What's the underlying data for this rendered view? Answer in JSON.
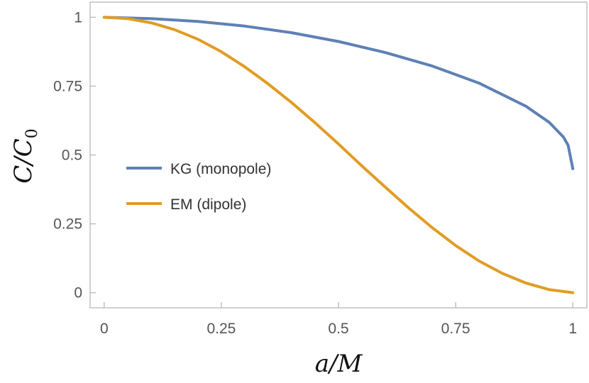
{
  "chart_data": {
    "type": "line",
    "title": "",
    "xlabel": "a/M",
    "ylabel": "C/C",
    "ylabel_subscript": "0",
    "xlim": [
      -0.03,
      1.03
    ],
    "ylim": [
      -0.055,
      1.055
    ],
    "xticks": [
      0,
      0.25,
      0.5,
      0.75,
      1
    ],
    "xtick_labels": [
      "0",
      "0.25",
      "0.5",
      "0.75",
      "1"
    ],
    "yticks": [
      0,
      0.25,
      0.5,
      0.75,
      1
    ],
    "ytick_labels": [
      "0",
      "0.25",
      "0.5",
      "0.75",
      "1"
    ],
    "grid": false,
    "legend_position": "center-left",
    "series": [
      {
        "name": "KG (monopole)",
        "color": "#5E81B5",
        "x": [
          0,
          0.1,
          0.2,
          0.3,
          0.4,
          0.5,
          0.6,
          0.7,
          0.8,
          0.9,
          0.95,
          0.98,
          0.99,
          1.0
        ],
        "y": [
          1.0,
          0.995,
          0.985,
          0.968,
          0.944,
          0.912,
          0.872,
          0.823,
          0.761,
          0.677,
          0.618,
          0.565,
          0.535,
          0.45
        ]
      },
      {
        "name": "EM (dipole)",
        "color": "#E19C24",
        "x": [
          0,
          0.05,
          0.1,
          0.15,
          0.2,
          0.25,
          0.3,
          0.35,
          0.4,
          0.45,
          0.5,
          0.55,
          0.6,
          0.65,
          0.7,
          0.75,
          0.8,
          0.85,
          0.9,
          0.95,
          1.0
        ],
        "y": [
          1.0,
          0.995,
          0.98,
          0.955,
          0.92,
          0.875,
          0.82,
          0.758,
          0.69,
          0.617,
          0.54,
          0.46,
          0.383,
          0.307,
          0.236,
          0.171,
          0.115,
          0.07,
          0.035,
          0.011,
          0.0
        ]
      }
    ]
  }
}
